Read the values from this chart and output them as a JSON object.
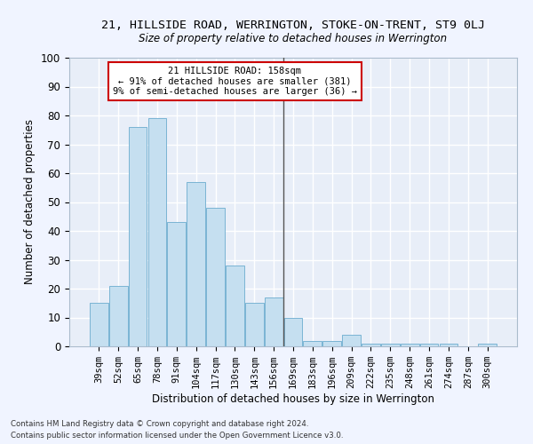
{
  "title": "21, HILLSIDE ROAD, WERRINGTON, STOKE-ON-TRENT, ST9 0LJ",
  "subtitle": "Size of property relative to detached houses in Werrington",
  "xlabel": "Distribution of detached houses by size in Werrington",
  "ylabel": "Number of detached properties",
  "categories": [
    "39sqm",
    "52sqm",
    "65sqm",
    "78sqm",
    "91sqm",
    "104sqm",
    "117sqm",
    "130sqm",
    "143sqm",
    "156sqm",
    "169sqm",
    "183sqm",
    "196sqm",
    "209sqm",
    "222sqm",
    "235sqm",
    "248sqm",
    "261sqm",
    "274sqm",
    "287sqm",
    "300sqm"
  ],
  "values": [
    15,
    21,
    76,
    79,
    43,
    57,
    48,
    28,
    15,
    17,
    10,
    2,
    2,
    4,
    1,
    1,
    1,
    1,
    1,
    0,
    1
  ],
  "bar_color": "#c5dff0",
  "bar_edge_color": "#7ab4d4",
  "annotation_text": "21 HILLSIDE ROAD: 158sqm\n← 91% of detached houses are smaller (381)\n9% of semi-detached houses are larger (36) →",
  "annotation_box_color": "#ffffff",
  "annotation_box_edge_color": "#cc0000",
  "vline_color": "#555555",
  "background_color": "#e8eef8",
  "grid_color": "#ffffff",
  "ylim": [
    0,
    100
  ],
  "yticks": [
    0,
    10,
    20,
    30,
    40,
    50,
    60,
    70,
    80,
    90,
    100
  ],
  "footer1": "Contains HM Land Registry data © Crown copyright and database right 2024.",
  "footer2": "Contains public sector information licensed under the Open Government Licence v3.0."
}
